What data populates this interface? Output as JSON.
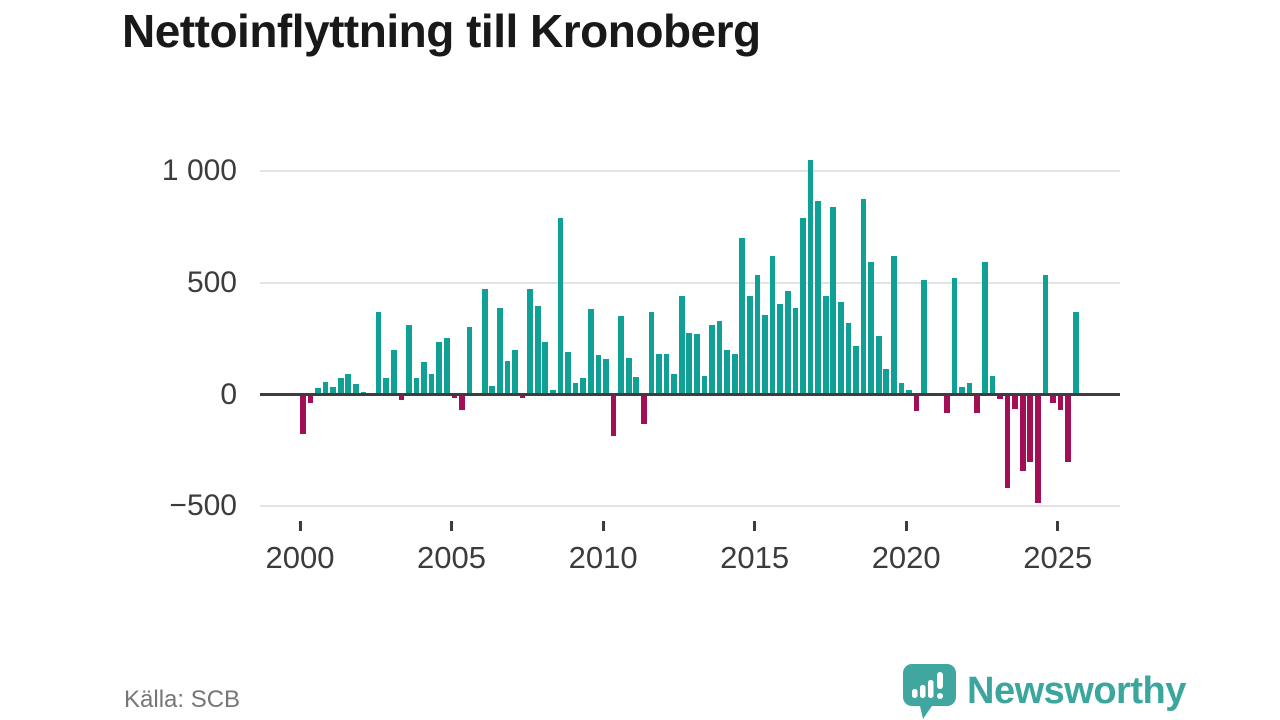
{
  "title": "Nettoinflyttning till Kronoberg",
  "source": "Källa: SCB",
  "brand": {
    "name": "Newsworthy",
    "color": "#3ba69e"
  },
  "colors": {
    "positive": "#11a096",
    "negative": "#a20f56",
    "grid": "#e3e3e3",
    "zero_line": "#3d3d3d",
    "axis_text": "#3c3c3c",
    "source_text": "#767676"
  },
  "chart_data": {
    "type": "bar",
    "title": "Nettoinflyttning till Kronoberg",
    "frequency": "quarterly",
    "start": "2000Q1",
    "end": "2025Q3",
    "values": [
      -175,
      -37,
      30,
      55,
      34,
      72,
      94,
      49,
      12,
      4,
      370,
      75,
      201,
      -25,
      313,
      72,
      146,
      94,
      236,
      255,
      -15,
      -70,
      301,
      5,
      473,
      40,
      388,
      152,
      201,
      -15,
      473,
      396,
      234,
      18,
      788,
      190,
      52,
      75,
      384,
      178,
      160,
      -187,
      351,
      164,
      78,
      -130,
      369,
      181,
      182,
      90,
      440,
      276,
      269,
      82,
      309,
      328,
      201,
      182,
      701,
      440,
      537,
      354,
      619,
      407,
      462,
      388,
      788,
      1052,
      866,
      440,
      840,
      413,
      321,
      219,
      876,
      594,
      261,
      112,
      622,
      50,
      22,
      -75,
      512,
      2,
      8,
      -85,
      522,
      34,
      50,
      -85,
      594,
      82,
      -22,
      -418,
      -64,
      -343,
      -300,
      -485,
      533,
      -40,
      -70,
      -300,
      370
    ],
    "y_ticks": [
      {
        "label": "1 000",
        "value": 1000
      },
      {
        "label": "500",
        "value": 500
      },
      {
        "label": "0",
        "value": 0
      },
      {
        "label": "−500",
        "value": -500
      }
    ],
    "x_ticks": [
      {
        "label": "2000",
        "year": 2000
      },
      {
        "label": "2005",
        "year": 2005
      },
      {
        "label": "2010",
        "year": 2010
      },
      {
        "label": "2015",
        "year": 2015
      },
      {
        "label": "2020",
        "year": 2020
      },
      {
        "label": "2025",
        "year": 2025
      }
    ],
    "ylim": [
      -548,
      1139
    ],
    "xlabel": "",
    "ylabel": "",
    "grid": "horizontal",
    "legend": "none"
  }
}
